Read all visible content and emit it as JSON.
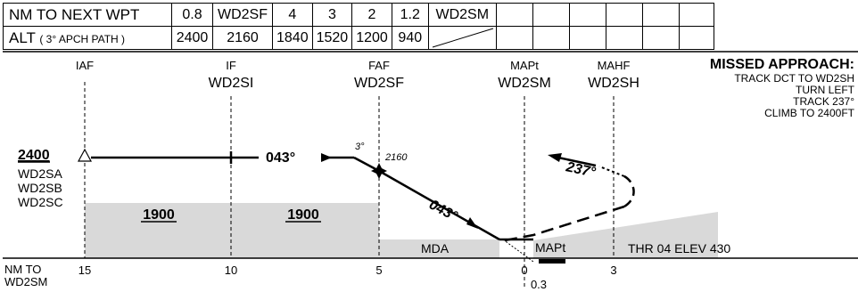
{
  "table": {
    "row1_label": "NM TO NEXT WPT",
    "row1": [
      "0.8",
      "WD2SF",
      "4",
      "3",
      "2",
      "1.2",
      "WD2SM",
      "",
      "",
      "",
      "",
      "",
      ""
    ],
    "row2_label_main": "ALT",
    "row2_label_sub": "( 3° APCH PATH )",
    "row2": [
      "2400",
      "2160",
      "1840",
      "1520",
      "1200",
      "940",
      "",
      "",
      "",
      "",
      "",
      "",
      ""
    ]
  },
  "fixes": {
    "iaf": {
      "type": "IAF",
      "name": ""
    },
    "if": {
      "type": "IF",
      "name": "WD2SI"
    },
    "faf": {
      "type": "FAF",
      "name": "WD2SF"
    },
    "mapt": {
      "type": "MAPt",
      "name": "WD2SM"
    },
    "mahf": {
      "type": "MAHF",
      "name": "WD2SH"
    }
  },
  "missed": {
    "title": "MISSED APPROACH:",
    "lines": [
      "TRACK DCT TO WD2SH",
      "TURN LEFT",
      "TRACK 237°",
      "CLIMB TO 2400FT"
    ]
  },
  "profile": {
    "init_alt": "2400",
    "init_fixes": [
      "WD2SA",
      "WD2SB",
      "WD2SC"
    ],
    "track1": "043°",
    "track2": "043°",
    "missed_track": "237°",
    "glide": "3°",
    "faf_alt": "2160",
    "msa1": "1900",
    "msa2": "1900",
    "mda": "MDA",
    "mapt_label": "MAPt",
    "thr": "THR 04 ELEV 430"
  },
  "axis": {
    "label_line1": "NM TO",
    "label_line2": "WD2SM",
    "ticks": [
      "15",
      "10",
      "5",
      "0",
      "3"
    ],
    "sub": "0.3"
  }
}
